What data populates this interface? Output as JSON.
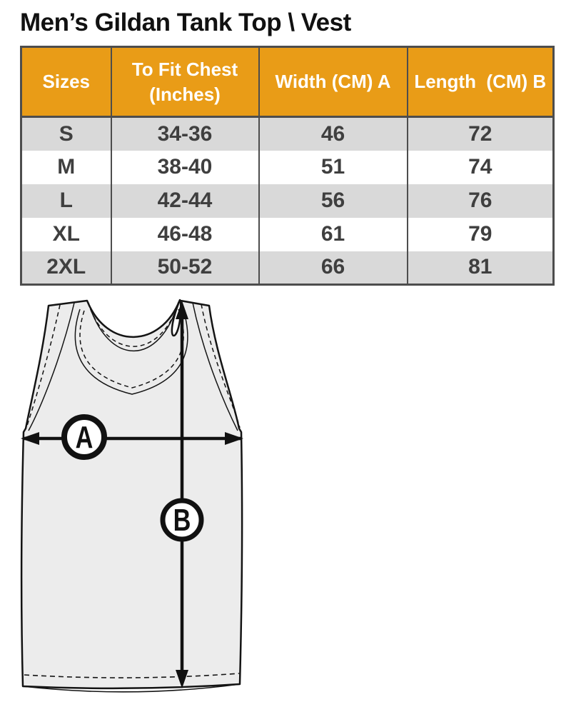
{
  "title": "Men’s Gildan Tank Top \\ Vest",
  "table": {
    "headers": [
      "Sizes",
      "To Fit Chest (Inches)",
      "Width (CM) A",
      "Length  (CM) B"
    ],
    "rows": [
      [
        "S",
        "34-36",
        "46",
        "72"
      ],
      [
        "M",
        "38-40",
        "51",
        "74"
      ],
      [
        "L",
        "42-44",
        "56",
        "76"
      ],
      [
        "XL",
        "46-48",
        "61",
        "79"
      ],
      [
        "2XL",
        "50-52",
        "66",
        "81"
      ]
    ]
  },
  "diagram": {
    "label_a": "A",
    "label_b": "B"
  },
  "colors": {
    "header_bg": "#E99C17",
    "header_text": "#FFFFFF",
    "row_alt_bg": "#D9D9D9",
    "row_bg": "#FFFFFF",
    "cell_text": "#3F3F3F",
    "border": "#4D4D4D",
    "title_text": "#111111",
    "garment_fill": "#ECECEC",
    "garment_line": "#141414"
  }
}
